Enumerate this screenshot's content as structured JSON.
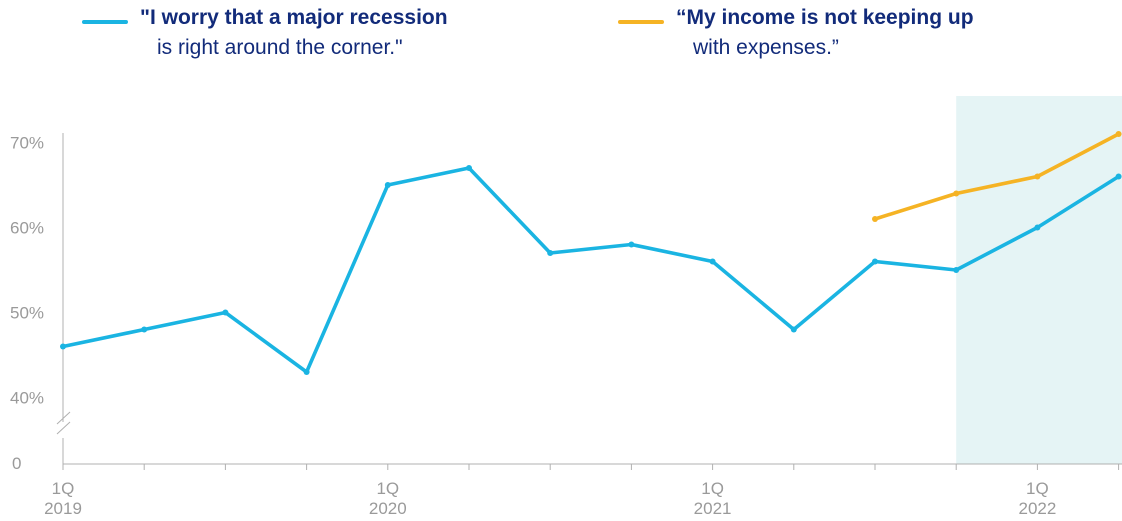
{
  "legend": {
    "recession": {
      "line1": "\"I worry that a major recession",
      "line2": "is right around the corner.\""
    },
    "income": {
      "line1": "“My income is not keeping up",
      "line2": "with expenses.”"
    }
  },
  "colors": {
    "recession": "#1ab4e2",
    "income": "#f5b324",
    "highlight": "#e5f4f5",
    "axis": "#b0b0b0",
    "text": "#122b7a"
  },
  "chart_data": {
    "type": "line",
    "x": [
      "1Q 2019",
      "2Q 2019",
      "3Q 2019",
      "4Q 2019",
      "1Q 2020",
      "2Q 2020",
      "3Q 2020",
      "4Q 2020",
      "1Q 2021",
      "2Q 2021",
      "3Q 2021",
      "4Q 2021",
      "1Q 2022",
      "2Q 2022"
    ],
    "series": [
      {
        "key": "recession",
        "values": [
          46,
          48,
          50,
          43,
          65,
          67,
          57,
          58,
          56,
          48,
          56,
          55,
          60,
          66
        ]
      },
      {
        "key": "income",
        "values": [
          null,
          null,
          null,
          null,
          null,
          null,
          null,
          null,
          null,
          null,
          61,
          64,
          66,
          71
        ]
      }
    ],
    "y_ticks": [
      {
        "value": 70,
        "label": "70%"
      },
      {
        "value": 60,
        "label": "60%"
      },
      {
        "value": 50,
        "label": "50%"
      },
      {
        "value": 40,
        "label": "40%"
      },
      {
        "value": 0,
        "label": "0"
      }
    ],
    "x_tick_labels": [
      {
        "index": 0,
        "quarter": "1Q",
        "year": "2019"
      },
      {
        "index": 4,
        "quarter": "1Q",
        "year": "2020"
      },
      {
        "index": 8,
        "quarter": "1Q",
        "year": "2021"
      },
      {
        "index": 12,
        "quarter": "1Q",
        "year": "2022"
      }
    ],
    "highlight_range": [
      "4Q 2021",
      "2Q 2022"
    ],
    "y_axis_break": true
  }
}
